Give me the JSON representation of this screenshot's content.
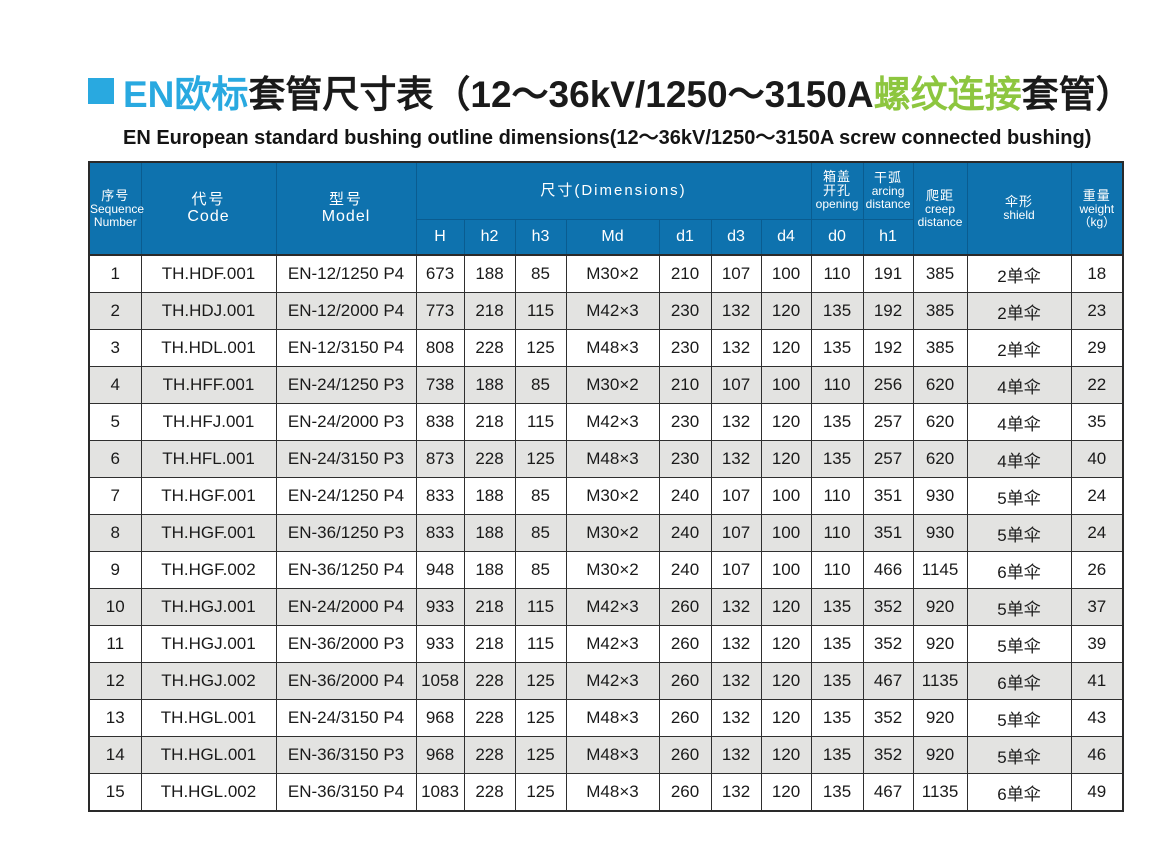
{
  "page": {
    "title": {
      "highlight_en": "EN欧标",
      "middle": "套管尺寸表（12～36kV/1250～3150A",
      "highlight_screw": "螺纹连接",
      "tail": "套管）",
      "subtitle": "EN European standard bushing outline dimensions(12～36kV/1250～3150A screw connected bushing)"
    },
    "colors": {
      "header_blue": "#0e72ae",
      "title_cyan": "#29a9e0",
      "title_green": "#8dc63f",
      "stripe_gray": "#e3e3e1"
    }
  },
  "table": {
    "header": {
      "sequence": {
        "zh": "序号",
        "en_line1": "Sequence",
        "en_line2": "Number"
      },
      "code": {
        "zh": "代号",
        "en": "Code"
      },
      "model": {
        "zh": "型号",
        "en": "Model"
      },
      "dimensions_group": "尺寸(Dimensions)",
      "dim_cols": [
        "H",
        "h2",
        "h3",
        "Md",
        "d1",
        "d3",
        "d4"
      ],
      "opening": {
        "zh_line1": "箱盖",
        "zh_line2": "开孔",
        "en": "opening",
        "sub": "d0"
      },
      "arcing": {
        "zh": "干弧",
        "en_line1": "arcing",
        "en_line2": "distance",
        "sub": "h1"
      },
      "creep": {
        "zh": "爬距",
        "en_line1": "creep",
        "en_line2": "distance"
      },
      "shield": {
        "zh": "伞形",
        "en": "shield"
      },
      "weight": {
        "zh": "重量",
        "en": "weight",
        "unit": "（kg）"
      }
    },
    "rows": [
      [
        "1",
        "TH.HDF.001",
        "EN-12/1250 P4",
        "673",
        "188",
        "85",
        "M30×2",
        "210",
        "107",
        "100",
        "110",
        "191",
        "385",
        "2单伞",
        "18"
      ],
      [
        "2",
        "TH.HDJ.001",
        "EN-12/2000 P4",
        "773",
        "218",
        "115",
        "M42×3",
        "230",
        "132",
        "120",
        "135",
        "192",
        "385",
        "2单伞",
        "23"
      ],
      [
        "3",
        "TH.HDL.001",
        "EN-12/3150 P4",
        "808",
        "228",
        "125",
        "M48×3",
        "230",
        "132",
        "120",
        "135",
        "192",
        "385",
        "2单伞",
        "29"
      ],
      [
        "4",
        "TH.HFF.001",
        "EN-24/1250 P3",
        "738",
        "188",
        "85",
        "M30×2",
        "210",
        "107",
        "100",
        "110",
        "256",
        "620",
        "4单伞",
        "22"
      ],
      [
        "5",
        "TH.HFJ.001",
        "EN-24/2000 P3",
        "838",
        "218",
        "115",
        "M42×3",
        "230",
        "132",
        "120",
        "135",
        "257",
        "620",
        "4单伞",
        "35"
      ],
      [
        "6",
        "TH.HFL.001",
        "EN-24/3150 P3",
        "873",
        "228",
        "125",
        "M48×3",
        "230",
        "132",
        "120",
        "135",
        "257",
        "620",
        "4单伞",
        "40"
      ],
      [
        "7",
        "TH.HGF.001",
        "EN-24/1250 P4",
        "833",
        "188",
        "85",
        "M30×2",
        "240",
        "107",
        "100",
        "110",
        "351",
        "930",
        "5单伞",
        "24"
      ],
      [
        "8",
        "TH.HGF.001",
        "EN-36/1250 P3",
        "833",
        "188",
        "85",
        "M30×2",
        "240",
        "107",
        "100",
        "110",
        "351",
        "930",
        "5单伞",
        "24"
      ],
      [
        "9",
        "TH.HGF.002",
        "EN-36/1250 P4",
        "948",
        "188",
        "85",
        "M30×2",
        "240",
        "107",
        "100",
        "110",
        "466",
        "1145",
        "6单伞",
        "26"
      ],
      [
        "10",
        "TH.HGJ.001",
        "EN-24/2000 P4",
        "933",
        "218",
        "115",
        "M42×3",
        "260",
        "132",
        "120",
        "135",
        "352",
        "920",
        "5单伞",
        "37"
      ],
      [
        "11",
        "TH.HGJ.001",
        "EN-36/2000 P3",
        "933",
        "218",
        "115",
        "M42×3",
        "260",
        "132",
        "120",
        "135",
        "352",
        "920",
        "5单伞",
        "39"
      ],
      [
        "12",
        "TH.HGJ.002",
        "EN-36/2000 P4",
        "1058",
        "228",
        "125",
        "M42×3",
        "260",
        "132",
        "120",
        "135",
        "467",
        "1135",
        "6单伞",
        "41"
      ],
      [
        "13",
        "TH.HGL.001",
        "EN-24/3150 P4",
        "968",
        "228",
        "125",
        "M48×3",
        "260",
        "132",
        "120",
        "135",
        "352",
        "920",
        "5单伞",
        "43"
      ],
      [
        "14",
        "TH.HGL.001",
        "EN-36/3150 P3",
        "968",
        "228",
        "125",
        "M48×3",
        "260",
        "132",
        "120",
        "135",
        "352",
        "920",
        "5单伞",
        "46"
      ],
      [
        "15",
        "TH.HGL.002",
        "EN-36/3150 P4",
        "1083",
        "228",
        "125",
        "M48×3",
        "260",
        "132",
        "120",
        "135",
        "467",
        "1135",
        "6单伞",
        "49"
      ]
    ]
  }
}
